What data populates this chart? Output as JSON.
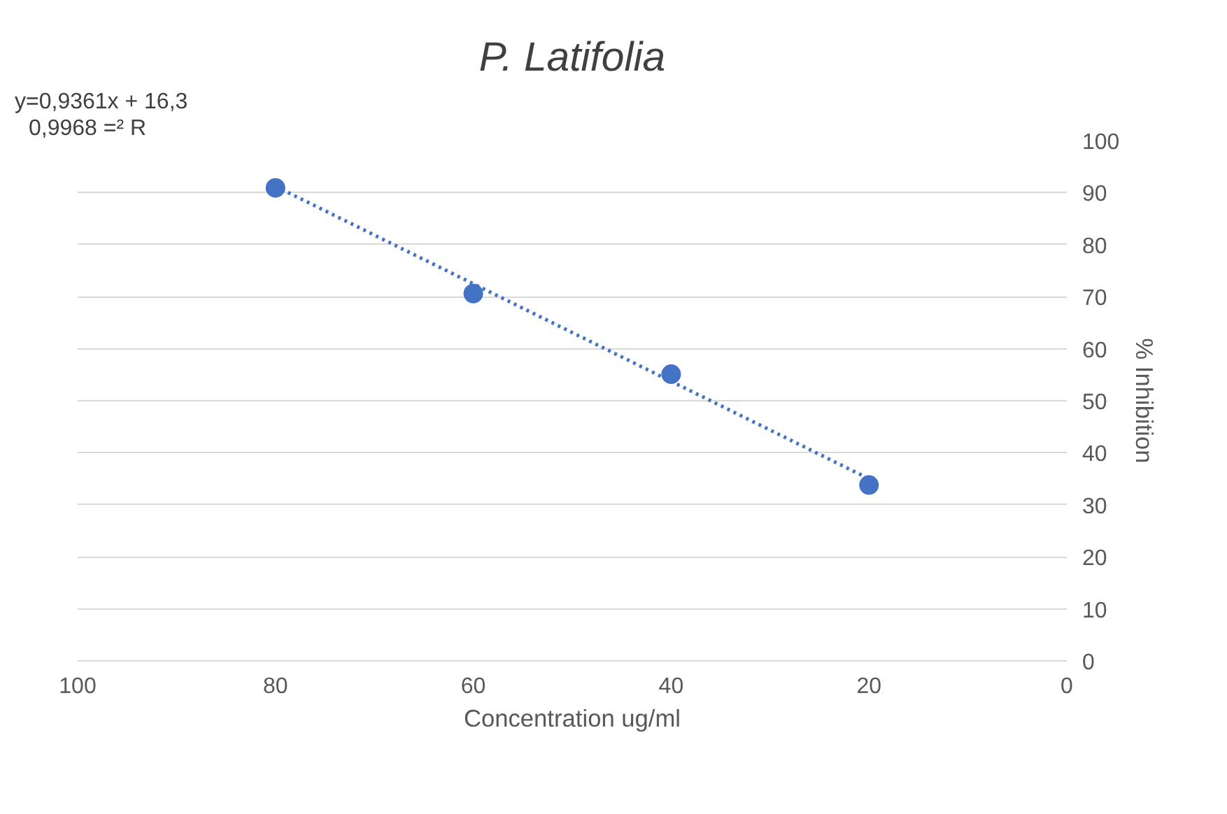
{
  "chart_data": {
    "type": "scatter",
    "title": "P. Latifolia",
    "xlabel": "Concentration ug/ml",
    "ylabel": "% Inhibition",
    "annotations": [
      "y=0,9361x + 16,3",
      "0,9968 =² R"
    ],
    "x": [
      80,
      60,
      40,
      20
    ],
    "series": [
      {
        "color": "#4472c4",
        "values": [
          90.9,
          70.6,
          55.1,
          33.8
        ],
        "marker": "circle"
      },
      {
        "type": "line",
        "color": "#4472c4",
        "x": [
          80,
          20
        ],
        "values": [
          91.2,
          35.0
        ],
        "line_style": "dotted",
        "marker": "none"
      }
    ],
    "xlim": [
      100,
      0
    ],
    "xticks": [
      100,
      80,
      60,
      40,
      20,
      0
    ],
    "ylim": [
      0,
      100
    ],
    "yticks": [
      0,
      10,
      20,
      30,
      40,
      50,
      60,
      70,
      80,
      90,
      100
    ],
    "grid": "y"
  }
}
